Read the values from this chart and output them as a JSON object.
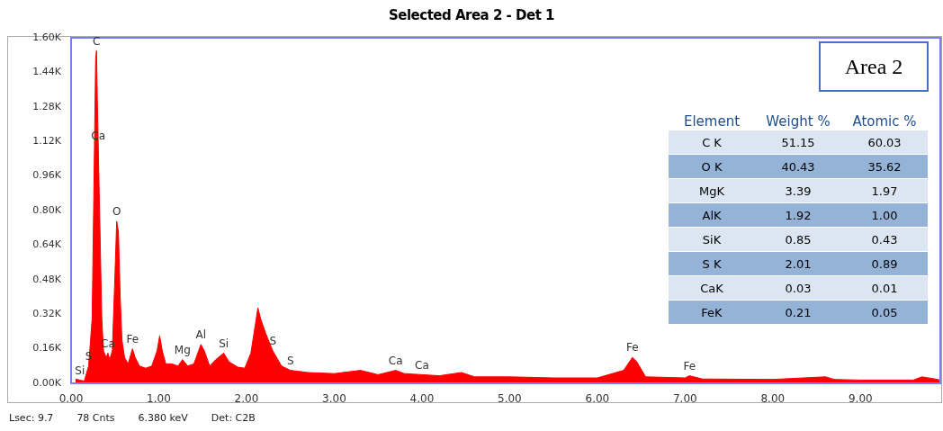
{
  "chart_data": [
    {
      "type": "area",
      "title": "Selected Area 2 - Det 1",
      "x": [
        0.05,
        0.1,
        0.15,
        0.2,
        0.24,
        0.26,
        0.28,
        0.29,
        0.3,
        0.31,
        0.33,
        0.35,
        0.37,
        0.4,
        0.42,
        0.44,
        0.47,
        0.5,
        0.52,
        0.54,
        0.56,
        0.58,
        0.61,
        0.65,
        0.7,
        0.73,
        0.78,
        0.85,
        0.92,
        0.98,
        1.01,
        1.04,
        1.08,
        1.15,
        1.22,
        1.27,
        1.33,
        1.4,
        1.48,
        1.52,
        1.58,
        1.65,
        1.74,
        1.8,
        1.9,
        1.98,
        2.05,
        2.1,
        2.13,
        2.16,
        2.22,
        2.3,
        2.4,
        2.5,
        2.7,
        3.0,
        3.3,
        3.5,
        3.7,
        3.8,
        4.0,
        4.2,
        4.45,
        4.6,
        5.0,
        5.5,
        6.0,
        6.3,
        6.4,
        6.45,
        6.55,
        7.0,
        7.05,
        7.2,
        8.0,
        8.6,
        8.7,
        9.0,
        9.6,
        9.7,
        9.85,
        9.91
      ],
      "series": [
        {
          "color": "#ff0000",
          "values": [
            20,
            15,
            10,
            80,
            300,
            900,
            1500,
            1540,
            1300,
            1100,
            700,
            300,
            150,
            120,
            140,
            110,
            150,
            500,
            750,
            700,
            400,
            200,
            120,
            90,
            160,
            120,
            80,
            70,
            80,
            150,
            220,
            150,
            90,
            90,
            80,
            110,
            80,
            90,
            180,
            150,
            80,
            110,
            140,
            100,
            75,
            70,
            140,
            270,
            350,
            300,
            230,
            150,
            80,
            60,
            50,
            45,
            60,
            40,
            60,
            45,
            40,
            35,
            50,
            30,
            30,
            25,
            25,
            60,
            120,
            100,
            30,
            25,
            35,
            20,
            18,
            30,
            18,
            15,
            15,
            30,
            20,
            15
          ]
        }
      ],
      "xlim": [
        0,
        9.91
      ],
      "xticks": [
        {
          "value": 0,
          "label": "0.00"
        },
        {
          "value": 1,
          "label": "1.00"
        },
        {
          "value": 2,
          "label": "2.00"
        },
        {
          "value": 3,
          "label": "3.00"
        },
        {
          "value": 4,
          "label": "4.00"
        },
        {
          "value": 5,
          "label": "5.00"
        },
        {
          "value": 6,
          "label": "6.00"
        },
        {
          "value": 7,
          "label": "7.00"
        },
        {
          "value": 8,
          "label": "8.00"
        },
        {
          "value": 9,
          "label": "9.00"
        }
      ],
      "ylim": [
        0,
        1600
      ],
      "yticks": [
        {
          "value": 0,
          "label": "0.00K"
        },
        {
          "value": 160,
          "label": "0.16K"
        },
        {
          "value": 320,
          "label": "0.32K"
        },
        {
          "value": 480,
          "label": "0.48K"
        },
        {
          "value": 640,
          "label": "0.64K"
        },
        {
          "value": 800,
          "label": "0.80K"
        },
        {
          "value": 960,
          "label": "0.96K"
        },
        {
          "value": 1120,
          "label": "1.12K"
        },
        {
          "value": 1280,
          "label": "1.28K"
        },
        {
          "value": 1440,
          "label": "1.44K"
        },
        {
          "value": 1600,
          "label": "1.60K"
        }
      ],
      "grid": false,
      "legend": false,
      "annotations": [
        "Area 2",
        "Lsec: 9.7",
        "78 Cnts",
        "6.380 keV",
        "Det: C2B",
        {
          "text": "C",
          "x": 0.29,
          "y": 1540
        },
        {
          "text": "Ca",
          "x": 0.31,
          "y": 1100
        },
        {
          "text": "O",
          "x": 0.52,
          "y": 750
        },
        {
          "text": "S",
          "x": 0.2,
          "y": 80
        },
        {
          "text": "Si",
          "x": 0.1,
          "y": 15
        },
        {
          "text": "Ca",
          "x": 0.42,
          "y": 140
        },
        {
          "text": "Fe",
          "x": 0.7,
          "y": 160
        },
        {
          "text": "Mg",
          "x": 1.27,
          "y": 110
        },
        {
          "text": "Al",
          "x": 1.48,
          "y": 180
        },
        {
          "text": "Si",
          "x": 1.74,
          "y": 140
        },
        {
          "text": "S",
          "x": 2.3,
          "y": 150
        },
        {
          "text": "S",
          "x": 2.5,
          "y": 60
        },
        {
          "text": "Ca",
          "x": 3.7,
          "y": 60
        },
        {
          "text": "Ca",
          "x": 4.0,
          "y": 40
        },
        {
          "text": "Fe",
          "x": 6.4,
          "y": 120
        },
        {
          "text": "Fe",
          "x": 7.05,
          "y": 35
        }
      ]
    },
    {
      "type": "other",
      "annotations": [
        "Element",
        "Weight %",
        "Atomic %",
        "C K",
        "51.15",
        "60.03",
        "O K",
        "40.43",
        "35.62",
        "MgK",
        "3.39",
        "1.97",
        "AlK",
        "1.92",
        "1.00",
        "SiK",
        "0.85",
        "0.43",
        "S K",
        "2.01",
        "0.89",
        "CaK",
        "0.03",
        "0.01",
        "FeK",
        "0.21",
        "0.05"
      ]
    }
  ]
}
